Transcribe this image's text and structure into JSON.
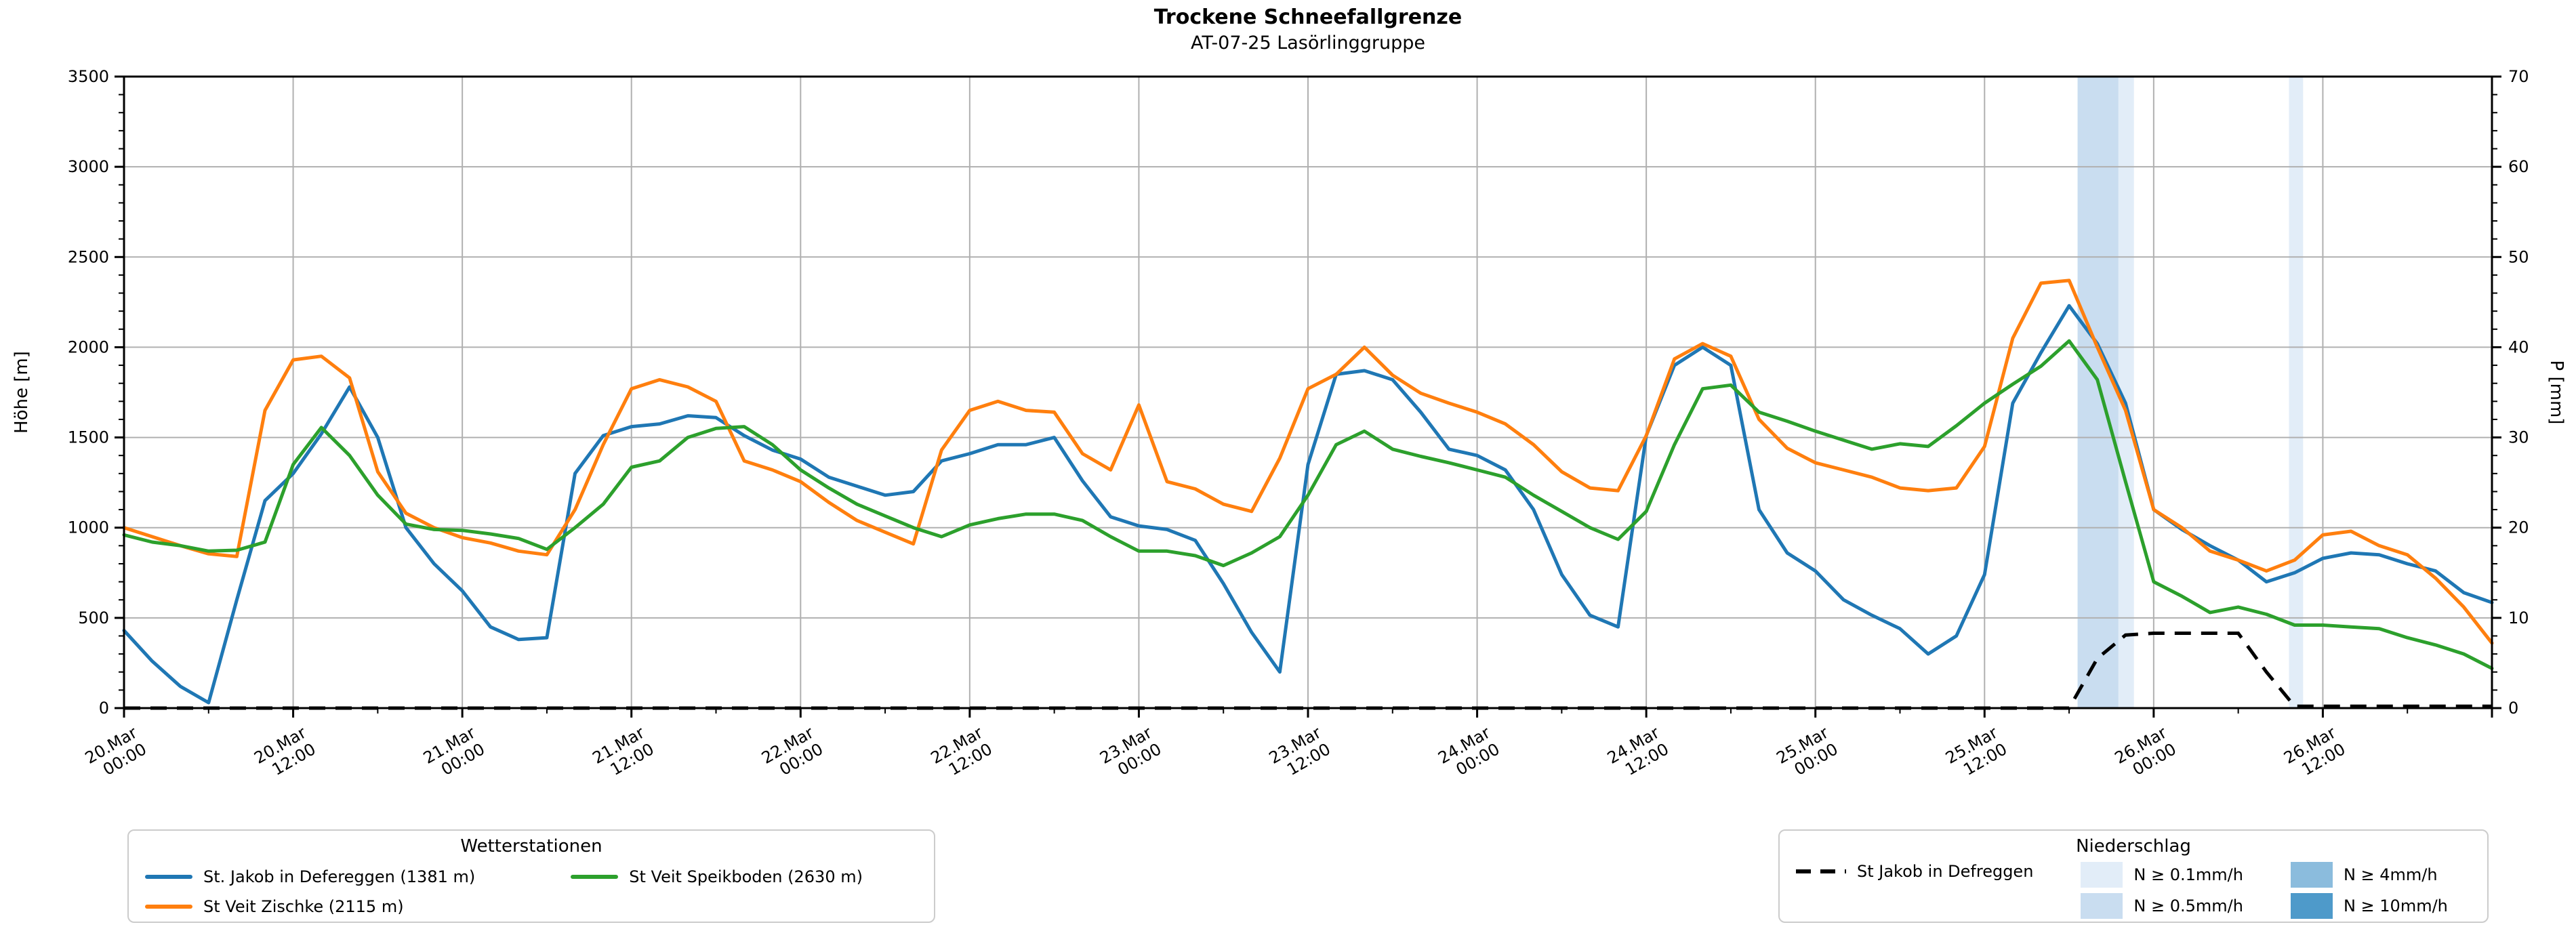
{
  "chart_data": {
    "type": "line",
    "title": "Trockene Schneefallgrenze",
    "subtitle": "AT-07-25 Lasörlinggruppe",
    "x_unit": "hours since 20.Mar 00:00",
    "x_step_hours": 2,
    "x_total_hours": 168,
    "grid": true,
    "axes": {
      "left": {
        "label": "Höhe [m]",
        "min": 0,
        "max": 3500,
        "tick_step": 500,
        "minor_step": 100,
        "ticks": [
          0,
          500,
          1000,
          1500,
          2000,
          2500,
          3000,
          3500
        ]
      },
      "right": {
        "label": "P [mm]",
        "min": 0,
        "max": 70,
        "tick_step": 10,
        "minor_step": 2,
        "ticks": [
          0,
          10,
          20,
          30,
          40,
          50,
          60,
          70
        ]
      },
      "x": {
        "major_every_hours": 12,
        "minor_every_hours": 6,
        "tick_labels": [
          {
            "hour": 0,
            "line1": "20.Mar",
            "line2": "00:00"
          },
          {
            "hour": 12,
            "line1": "20.Mar",
            "line2": "12:00"
          },
          {
            "hour": 24,
            "line1": "21.Mar",
            "line2": "00:00"
          },
          {
            "hour": 36,
            "line1": "21.Mar",
            "line2": "12:00"
          },
          {
            "hour": 48,
            "line1": "22.Mar",
            "line2": "00:00"
          },
          {
            "hour": 60,
            "line1": "22.Mar",
            "line2": "12:00"
          },
          {
            "hour": 72,
            "line1": "23.Mar",
            "line2": "00:00"
          },
          {
            "hour": 84,
            "line1": "23.Mar",
            "line2": "12:00"
          },
          {
            "hour": 96,
            "line1": "24.Mar",
            "line2": "00:00"
          },
          {
            "hour": 108,
            "line1": "24.Mar",
            "line2": "12:00"
          },
          {
            "hour": 120,
            "line1": "25.Mar",
            "line2": "00:00"
          },
          {
            "hour": 132,
            "line1": "25.Mar",
            "line2": "12:00"
          },
          {
            "hour": 144,
            "line1": "26.Mar",
            "line2": "00:00"
          },
          {
            "hour": 156,
            "line1": "26.Mar",
            "line2": "12:00"
          }
        ]
      }
    },
    "series": [
      {
        "name": "St. Jakob in Defereggen (1381 m)",
        "color": "#1f77b4",
        "axis": "left",
        "unit": "m",
        "values": [
          430,
          260,
          120,
          30,
          600,
          1150,
          1300,
          1520,
          1780,
          1500,
          1000,
          800,
          650,
          450,
          380,
          390,
          1300,
          1510,
          1560,
          1575,
          1620,
          1610,
          1510,
          1430,
          1380,
          1280,
          1230,
          1180,
          1200,
          1370,
          1410,
          1460,
          1460,
          1500,
          1260,
          1060,
          1010,
          990,
          930,
          690,
          420,
          200,
          1350,
          1850,
          1870,
          1820,
          1640,
          1435,
          1400,
          1320,
          1100,
          740,
          515,
          450,
          1510,
          1900,
          2000,
          1900,
          1100,
          860,
          760,
          600,
          515,
          440,
          300,
          400,
          740,
          1690,
          1970,
          2230,
          2020,
          1690,
          1100,
          990,
          900,
          820,
          700,
          750,
          830,
          860,
          850,
          800,
          760,
          640,
          585
        ]
      },
      {
        "name": "St Veit Zischke (2115 m)",
        "color": "#ff7f0e",
        "axis": "left",
        "unit": "m",
        "values": [
          1000,
          950,
          900,
          855,
          840,
          1650,
          1930,
          1950,
          1830,
          1310,
          1080,
          1000,
          945,
          915,
          870,
          850,
          1100,
          1460,
          1770,
          1820,
          1780,
          1700,
          1370,
          1320,
          1255,
          1140,
          1040,
          975,
          910,
          1430,
          1650,
          1700,
          1650,
          1640,
          1410,
          1320,
          1680,
          1255,
          1215,
          1130,
          1090,
          1385,
          1770,
          1850,
          2000,
          1845,
          1745,
          1690,
          1640,
          1575,
          1460,
          1310,
          1220,
          1205,
          1510,
          1935,
          2020,
          1950,
          1600,
          1440,
          1360,
          1320,
          1280,
          1220,
          1205,
          1220,
          1450,
          2050,
          2355,
          2370,
          2000,
          1650,
          1100,
          1000,
          870,
          820,
          760,
          820,
          960,
          980,
          900,
          850,
          720,
          560,
          360
        ]
      },
      {
        "name": "St Veit Speikboden (2630 m)",
        "color": "#2ca02c",
        "axis": "left",
        "unit": "m",
        "values": [
          960,
          920,
          900,
          870,
          875,
          920,
          1350,
          1555,
          1400,
          1180,
          1020,
          990,
          985,
          965,
          940,
          880,
          1000,
          1130,
          1335,
          1370,
          1500,
          1550,
          1560,
          1460,
          1320,
          1220,
          1130,
          1065,
          1000,
          950,
          1015,
          1050,
          1075,
          1075,
          1040,
          950,
          870,
          870,
          845,
          790,
          860,
          950,
          1180,
          1460,
          1535,
          1435,
          1395,
          1360,
          1320,
          1280,
          1180,
          1090,
          1000,
          935,
          1090,
          1460,
          1770,
          1790,
          1640,
          1590,
          1535,
          1485,
          1435,
          1465,
          1450,
          1565,
          1690,
          1795,
          1895,
          2035,
          1820,
          1255,
          700,
          620,
          530,
          560,
          520,
          460,
          460,
          450,
          440,
          390,
          350,
          300,
          220
        ]
      }
    ],
    "precip_line": {
      "name": "St Jakob in Defreggen",
      "color": "#000000",
      "style": "dashed",
      "axis": "right",
      "unit": "mm",
      "values": [
        0,
        0,
        0,
        0,
        0,
        0,
        0,
        0,
        0,
        0,
        0,
        0,
        0,
        0,
        0,
        0,
        0,
        0,
        0,
        0,
        0,
        0,
        0,
        0,
        0,
        0,
        0,
        0,
        0,
        0,
        0,
        0,
        0,
        0,
        0,
        0,
        0,
        0,
        0,
        0,
        0,
        0,
        0,
        0,
        0,
        0,
        0,
        0,
        0,
        0,
        0,
        0,
        0,
        0,
        0,
        0,
        0,
        0,
        0,
        0,
        0,
        0,
        0,
        0,
        0,
        0,
        0,
        0,
        0,
        0,
        5.5,
        8.1,
        8.3,
        8.3,
        8.3,
        8.3,
        4,
        0.2,
        0.2,
        0.2,
        0.2,
        0.2,
        0.2,
        0.2,
        0.2
      ]
    },
    "precip_bands": [
      {
        "from_hour": 138.6,
        "to_hour": 141.5,
        "intensity": "N ≥ 0.5mm/h"
      },
      {
        "from_hour": 141.5,
        "to_hour": 142.6,
        "intensity": "N ≥ 0.1mm/h"
      },
      {
        "from_hour": 153.6,
        "to_hour": 154.6,
        "intensity": "N ≥ 0.1mm/h"
      }
    ],
    "band_colors": {
      "N ≥ 0.1mm/h": "#e2edf8",
      "N ≥ 0.5mm/h": "#c9ddf0",
      "N ≥ 4mm/h": "#8bbcdd",
      "N ≥ 10mm/h": "#4e9aca"
    }
  },
  "legends": {
    "stations": {
      "title": "Wetterstationen",
      "items": [
        {
          "label": "St. Jakob in Defereggen (1381 m)",
          "series_index": 0
        },
        {
          "label": "St Veit Zischke (2115 m)",
          "series_index": 1
        },
        {
          "label": "St Veit Speikboden (2630 m)",
          "series_index": 2
        }
      ]
    },
    "precip": {
      "title": "Niederschlag",
      "line_item_label": "St Jakob in Defreggen",
      "patch_items": [
        {
          "label": "N ≥ 0.1mm/h"
        },
        {
          "label": "N ≥ 0.5mm/h"
        },
        {
          "label": "N ≥ 4mm/h"
        },
        {
          "label": "N ≥ 10mm/h"
        }
      ]
    }
  }
}
